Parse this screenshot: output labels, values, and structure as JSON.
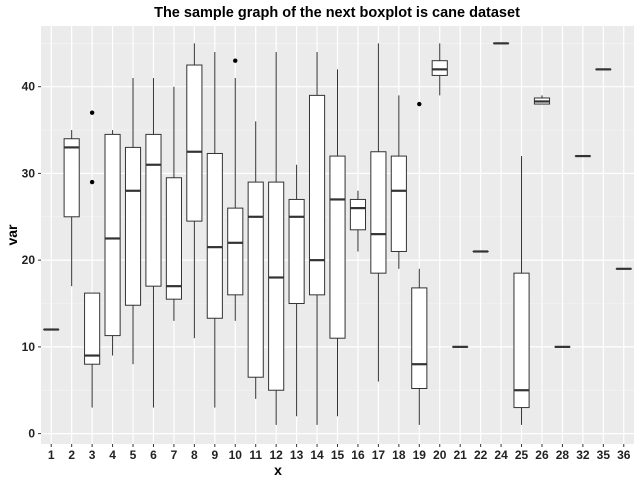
{
  "chart_data": {
    "type": "boxplot",
    "title": "The sample graph of the next boxplot is cane dataset",
    "xlabel": "x",
    "ylabel": "var",
    "ylim": [
      -1.2,
      47
    ],
    "yticks": [
      0,
      10,
      20,
      30,
      40
    ],
    "grid": true,
    "background": "#ebebeb",
    "categories": [
      "1",
      "2",
      "3",
      "4",
      "5",
      "6",
      "7",
      "8",
      "9",
      "10",
      "11",
      "12",
      "13",
      "14",
      "15",
      "16",
      "17",
      "18",
      "19",
      "20",
      "21",
      "22",
      "24",
      "25",
      "26",
      "28",
      "32",
      "35",
      "36"
    ],
    "boxes": [
      {
        "q1": 12,
        "median": 12,
        "q3": 12,
        "lower": 12,
        "upper": 12,
        "outliers": []
      },
      {
        "q1": 25,
        "median": 33,
        "q3": 34,
        "lower": 17,
        "upper": 35,
        "outliers": []
      },
      {
        "q1": 8,
        "median": 9,
        "q3": 16.2,
        "lower": 3,
        "upper": 16.2,
        "outliers": [
          29,
          37
        ]
      },
      {
        "q1": 11.3,
        "median": 22.5,
        "q3": 34.5,
        "lower": 9,
        "upper": 35,
        "outliers": []
      },
      {
        "q1": 14.8,
        "median": 28,
        "q3": 33,
        "lower": 8,
        "upper": 41,
        "outliers": []
      },
      {
        "q1": 17,
        "median": 31,
        "q3": 34.5,
        "lower": 3,
        "upper": 41,
        "outliers": []
      },
      {
        "q1": 15.5,
        "median": 17,
        "q3": 29.5,
        "lower": 13,
        "upper": 40,
        "outliers": []
      },
      {
        "q1": 24.5,
        "median": 32.5,
        "q3": 42.5,
        "lower": 11,
        "upper": 45,
        "outliers": []
      },
      {
        "q1": 13.3,
        "median": 21.5,
        "q3": 32.3,
        "lower": 3,
        "upper": 44,
        "outliers": []
      },
      {
        "q1": 16,
        "median": 22,
        "q3": 26,
        "lower": 13,
        "upper": 41,
        "outliers": [
          43
        ]
      },
      {
        "q1": 6.5,
        "median": 25,
        "q3": 29,
        "lower": 4,
        "upper": 36,
        "outliers": []
      },
      {
        "q1": 5,
        "median": 18,
        "q3": 29,
        "lower": 1,
        "upper": 44,
        "outliers": []
      },
      {
        "q1": 15,
        "median": 25,
        "q3": 27,
        "lower": 2,
        "upper": 31,
        "outliers": []
      },
      {
        "q1": 16,
        "median": 20,
        "q3": 39,
        "lower": 1,
        "upper": 44,
        "outliers": []
      },
      {
        "q1": 11,
        "median": 27,
        "q3": 32,
        "lower": 2,
        "upper": 42,
        "outliers": []
      },
      {
        "q1": 23.5,
        "median": 26,
        "q3": 27,
        "lower": 21,
        "upper": 28,
        "outliers": []
      },
      {
        "q1": 18.5,
        "median": 23,
        "q3": 32.5,
        "lower": 6,
        "upper": 45,
        "outliers": []
      },
      {
        "q1": 21,
        "median": 28,
        "q3": 32,
        "lower": 19,
        "upper": 39,
        "outliers": []
      },
      {
        "q1": 5.2,
        "median": 8,
        "q3": 16.8,
        "lower": 1,
        "upper": 19,
        "outliers": [
          38
        ]
      },
      {
        "q1": 41.3,
        "median": 42,
        "q3": 43,
        "lower": 39,
        "upper": 45,
        "outliers": []
      },
      {
        "q1": 10,
        "median": 10,
        "q3": 10,
        "lower": 10,
        "upper": 10,
        "outliers": []
      },
      {
        "q1": 21,
        "median": 21,
        "q3": 21,
        "lower": 21,
        "upper": 21,
        "outliers": []
      },
      {
        "q1": 45,
        "median": 45,
        "q3": 45,
        "lower": 45,
        "upper": 45,
        "outliers": []
      },
      {
        "q1": 3,
        "median": 5,
        "q3": 18.5,
        "lower": 1,
        "upper": 32,
        "outliers": []
      },
      {
        "q1": 38,
        "median": 38.3,
        "q3": 38.7,
        "lower": 38,
        "upper": 39,
        "outliers": []
      },
      {
        "q1": 10,
        "median": 10,
        "q3": 10,
        "lower": 10,
        "upper": 10,
        "outliers": []
      },
      {
        "q1": 32,
        "median": 32,
        "q3": 32,
        "lower": 32,
        "upper": 32,
        "outliers": []
      },
      {
        "q1": 42,
        "median": 42,
        "q3": 42,
        "lower": 42,
        "upper": 42,
        "outliers": []
      },
      {
        "q1": 19,
        "median": 19,
        "q3": 19,
        "lower": 19,
        "upper": 19,
        "outliers": []
      }
    ]
  }
}
